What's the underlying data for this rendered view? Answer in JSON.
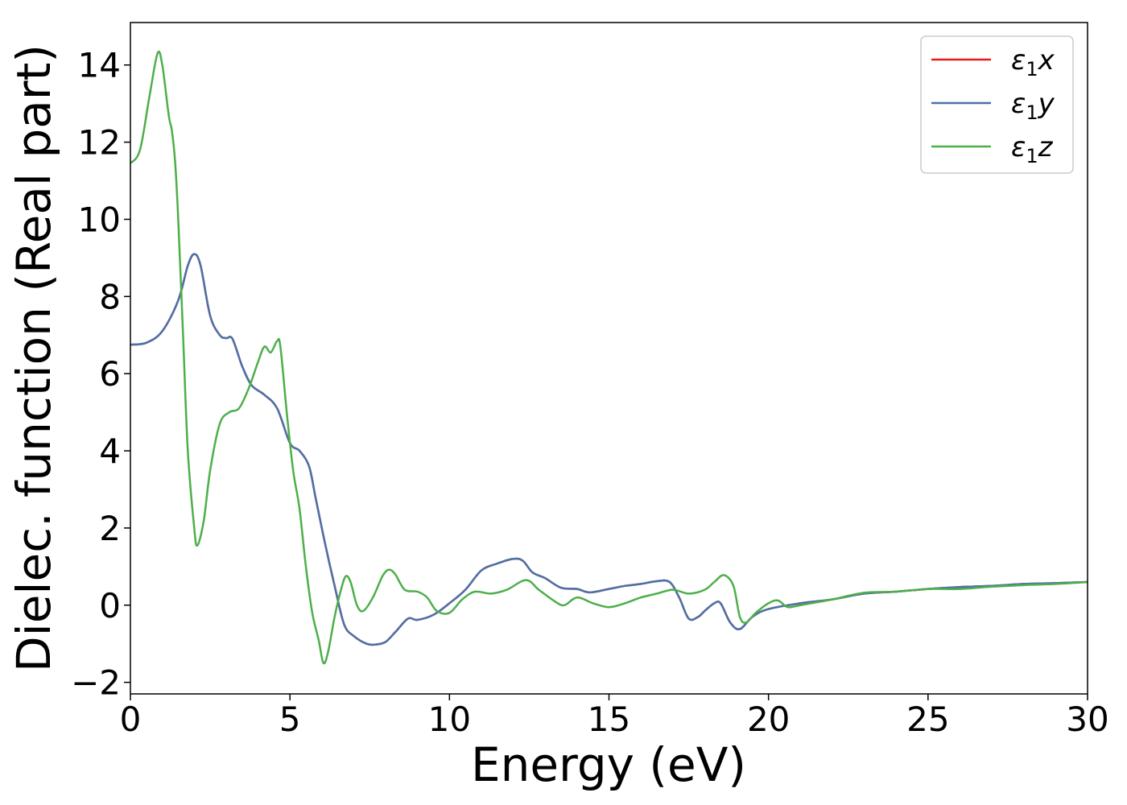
{
  "chart_data": {
    "type": "line",
    "xlabel": "Energy (eV)",
    "ylabel": "Dielec. function (Real part)",
    "xlim": [
      0,
      30
    ],
    "ylim": [
      -2.3,
      15.1
    ],
    "xticks": [
      0,
      5,
      10,
      15,
      20,
      25,
      30
    ],
    "xtick_labels": [
      "0",
      "5",
      "10",
      "15",
      "20",
      "25",
      "30"
    ],
    "yticks": [
      -2,
      0,
      2,
      4,
      6,
      8,
      10,
      12,
      14
    ],
    "ytick_labels": [
      "−2",
      "0",
      "2",
      "4",
      "6",
      "8",
      "10",
      "12",
      "14"
    ],
    "grid": false,
    "legend_position": "top-right",
    "series": [
      {
        "name": "ε1x",
        "color": "#e41a1c",
        "points": [
          [
            0,
            6.75
          ],
          [
            0.5,
            6.8
          ],
          [
            1.0,
            7.1
          ],
          [
            1.5,
            7.9
          ],
          [
            1.8,
            8.8
          ],
          [
            2.0,
            9.1
          ],
          [
            2.2,
            8.8
          ],
          [
            2.5,
            7.5
          ],
          [
            2.8,
            7.0
          ],
          [
            3.0,
            6.92
          ],
          [
            3.2,
            6.9
          ],
          [
            3.5,
            6.2
          ],
          [
            3.8,
            5.7
          ],
          [
            4.2,
            5.45
          ],
          [
            4.6,
            5.1
          ],
          [
            5.0,
            4.2
          ],
          [
            5.3,
            4.0
          ],
          [
            5.6,
            3.6
          ],
          [
            5.8,
            2.8
          ],
          [
            6.1,
            1.6
          ],
          [
            6.4,
            0.5
          ],
          [
            6.7,
            -0.5
          ],
          [
            7.0,
            -0.8
          ],
          [
            7.4,
            -1.0
          ],
          [
            7.7,
            -1.02
          ],
          [
            8.0,
            -0.95
          ],
          [
            8.3,
            -0.7
          ],
          [
            8.7,
            -0.35
          ],
          [
            9.0,
            -0.38
          ],
          [
            9.5,
            -0.25
          ],
          [
            10.0,
            0.05
          ],
          [
            10.5,
            0.4
          ],
          [
            11.0,
            0.9
          ],
          [
            11.5,
            1.08
          ],
          [
            12.0,
            1.2
          ],
          [
            12.3,
            1.15
          ],
          [
            12.6,
            0.85
          ],
          [
            13.0,
            0.7
          ],
          [
            13.5,
            0.45
          ],
          [
            14.0,
            0.42
          ],
          [
            14.4,
            0.33
          ],
          [
            15.0,
            0.42
          ],
          [
            15.5,
            0.5
          ],
          [
            16.0,
            0.55
          ],
          [
            16.5,
            0.62
          ],
          [
            16.9,
            0.6
          ],
          [
            17.2,
            0.2
          ],
          [
            17.5,
            -0.35
          ],
          [
            17.8,
            -0.3
          ],
          [
            18.0,
            -0.15
          ],
          [
            18.3,
            0.05
          ],
          [
            18.5,
            0.05
          ],
          [
            18.8,
            -0.45
          ],
          [
            19.1,
            -0.62
          ],
          [
            19.5,
            -0.3
          ],
          [
            20.0,
            -0.1
          ],
          [
            21.0,
            0.05
          ],
          [
            22.0,
            0.15
          ],
          [
            23.0,
            0.3
          ],
          [
            24.0,
            0.35
          ],
          [
            25.0,
            0.42
          ],
          [
            26.0,
            0.47
          ],
          [
            27.0,
            0.5
          ],
          [
            28.0,
            0.55
          ],
          [
            29.0,
            0.57
          ],
          [
            30.0,
            0.6
          ]
        ]
      },
      {
        "name": "ε1y",
        "color": "#4a72a8",
        "points": [
          [
            0,
            6.75
          ],
          [
            0.5,
            6.8
          ],
          [
            1.0,
            7.1
          ],
          [
            1.5,
            7.9
          ],
          [
            1.8,
            8.8
          ],
          [
            2.0,
            9.1
          ],
          [
            2.2,
            8.8
          ],
          [
            2.5,
            7.5
          ],
          [
            2.8,
            7.0
          ],
          [
            3.0,
            6.92
          ],
          [
            3.2,
            6.9
          ],
          [
            3.5,
            6.2
          ],
          [
            3.8,
            5.7
          ],
          [
            4.2,
            5.45
          ],
          [
            4.6,
            5.1
          ],
          [
            5.0,
            4.2
          ],
          [
            5.3,
            4.0
          ],
          [
            5.6,
            3.6
          ],
          [
            5.8,
            2.8
          ],
          [
            6.1,
            1.6
          ],
          [
            6.4,
            0.5
          ],
          [
            6.7,
            -0.5
          ],
          [
            7.0,
            -0.8
          ],
          [
            7.4,
            -1.0
          ],
          [
            7.7,
            -1.02
          ],
          [
            8.0,
            -0.95
          ],
          [
            8.3,
            -0.7
          ],
          [
            8.7,
            -0.35
          ],
          [
            9.0,
            -0.38
          ],
          [
            9.5,
            -0.25
          ],
          [
            10.0,
            0.05
          ],
          [
            10.5,
            0.4
          ],
          [
            11.0,
            0.9
          ],
          [
            11.5,
            1.08
          ],
          [
            12.0,
            1.2
          ],
          [
            12.3,
            1.15
          ],
          [
            12.6,
            0.85
          ],
          [
            13.0,
            0.7
          ],
          [
            13.5,
            0.45
          ],
          [
            14.0,
            0.42
          ],
          [
            14.4,
            0.33
          ],
          [
            15.0,
            0.42
          ],
          [
            15.5,
            0.5
          ],
          [
            16.0,
            0.55
          ],
          [
            16.5,
            0.62
          ],
          [
            16.9,
            0.6
          ],
          [
            17.2,
            0.2
          ],
          [
            17.5,
            -0.35
          ],
          [
            17.8,
            -0.3
          ],
          [
            18.0,
            -0.15
          ],
          [
            18.3,
            0.05
          ],
          [
            18.5,
            0.05
          ],
          [
            18.8,
            -0.45
          ],
          [
            19.1,
            -0.62
          ],
          [
            19.5,
            -0.3
          ],
          [
            20.0,
            -0.1
          ],
          [
            21.0,
            0.05
          ],
          [
            22.0,
            0.15
          ],
          [
            23.0,
            0.3
          ],
          [
            24.0,
            0.35
          ],
          [
            25.0,
            0.42
          ],
          [
            26.0,
            0.47
          ],
          [
            27.0,
            0.5
          ],
          [
            28.0,
            0.55
          ],
          [
            29.0,
            0.57
          ],
          [
            30.0,
            0.6
          ]
        ]
      },
      {
        "name": "ε1z",
        "color": "#4daf4a",
        "points": [
          [
            0,
            11.45
          ],
          [
            0.3,
            11.8
          ],
          [
            0.6,
            13.2
          ],
          [
            0.85,
            14.3
          ],
          [
            1.0,
            14.0
          ],
          [
            1.2,
            12.7
          ],
          [
            1.3,
            12.3
          ],
          [
            1.4,
            11.5
          ],
          [
            1.5,
            10.0
          ],
          [
            1.65,
            7.0
          ],
          [
            1.8,
            4.0
          ],
          [
            2.0,
            2.0
          ],
          [
            2.1,
            1.55
          ],
          [
            2.3,
            2.2
          ],
          [
            2.5,
            3.5
          ],
          [
            2.8,
            4.7
          ],
          [
            3.1,
            5.0
          ],
          [
            3.4,
            5.1
          ],
          [
            3.7,
            5.6
          ],
          [
            4.0,
            6.3
          ],
          [
            4.2,
            6.7
          ],
          [
            4.4,
            6.55
          ],
          [
            4.6,
            6.85
          ],
          [
            4.7,
            6.7
          ],
          [
            4.9,
            5.0
          ],
          [
            5.1,
            3.5
          ],
          [
            5.3,
            2.5
          ],
          [
            5.5,
            1.0
          ],
          [
            5.7,
            -0.2
          ],
          [
            5.9,
            -0.9
          ],
          [
            6.05,
            -1.5
          ],
          [
            6.2,
            -1.2
          ],
          [
            6.4,
            -0.3
          ],
          [
            6.6,
            0.4
          ],
          [
            6.75,
            0.75
          ],
          [
            6.9,
            0.6
          ],
          [
            7.1,
            0.0
          ],
          [
            7.3,
            -0.15
          ],
          [
            7.6,
            0.2
          ],
          [
            7.9,
            0.75
          ],
          [
            8.1,
            0.92
          ],
          [
            8.3,
            0.8
          ],
          [
            8.6,
            0.4
          ],
          [
            9.0,
            0.35
          ],
          [
            9.3,
            0.2
          ],
          [
            9.6,
            -0.15
          ],
          [
            10.0,
            -0.2
          ],
          [
            10.4,
            0.15
          ],
          [
            10.8,
            0.35
          ],
          [
            11.3,
            0.3
          ],
          [
            11.8,
            0.4
          ],
          [
            12.4,
            0.65
          ],
          [
            12.8,
            0.4
          ],
          [
            13.3,
            0.1
          ],
          [
            13.6,
            0.0
          ],
          [
            14.0,
            0.2
          ],
          [
            14.5,
            0.05
          ],
          [
            15.0,
            -0.05
          ],
          [
            15.5,
            0.05
          ],
          [
            16.0,
            0.2
          ],
          [
            16.5,
            0.3
          ],
          [
            17.0,
            0.4
          ],
          [
            17.5,
            0.3
          ],
          [
            18.0,
            0.4
          ],
          [
            18.3,
            0.6
          ],
          [
            18.6,
            0.78
          ],
          [
            18.9,
            0.5
          ],
          [
            19.1,
            -0.3
          ],
          [
            19.3,
            -0.45
          ],
          [
            19.6,
            -0.2
          ],
          [
            20.0,
            0.05
          ],
          [
            20.3,
            0.12
          ],
          [
            20.6,
            -0.05
          ],
          [
            21.0,
            0.0
          ],
          [
            22.0,
            0.15
          ],
          [
            23.0,
            0.32
          ],
          [
            24.0,
            0.35
          ],
          [
            25.0,
            0.42
          ],
          [
            26.0,
            0.42
          ],
          [
            27.0,
            0.48
          ],
          [
            28.0,
            0.52
          ],
          [
            29.0,
            0.55
          ],
          [
            30.0,
            0.6
          ]
        ]
      }
    ]
  }
}
